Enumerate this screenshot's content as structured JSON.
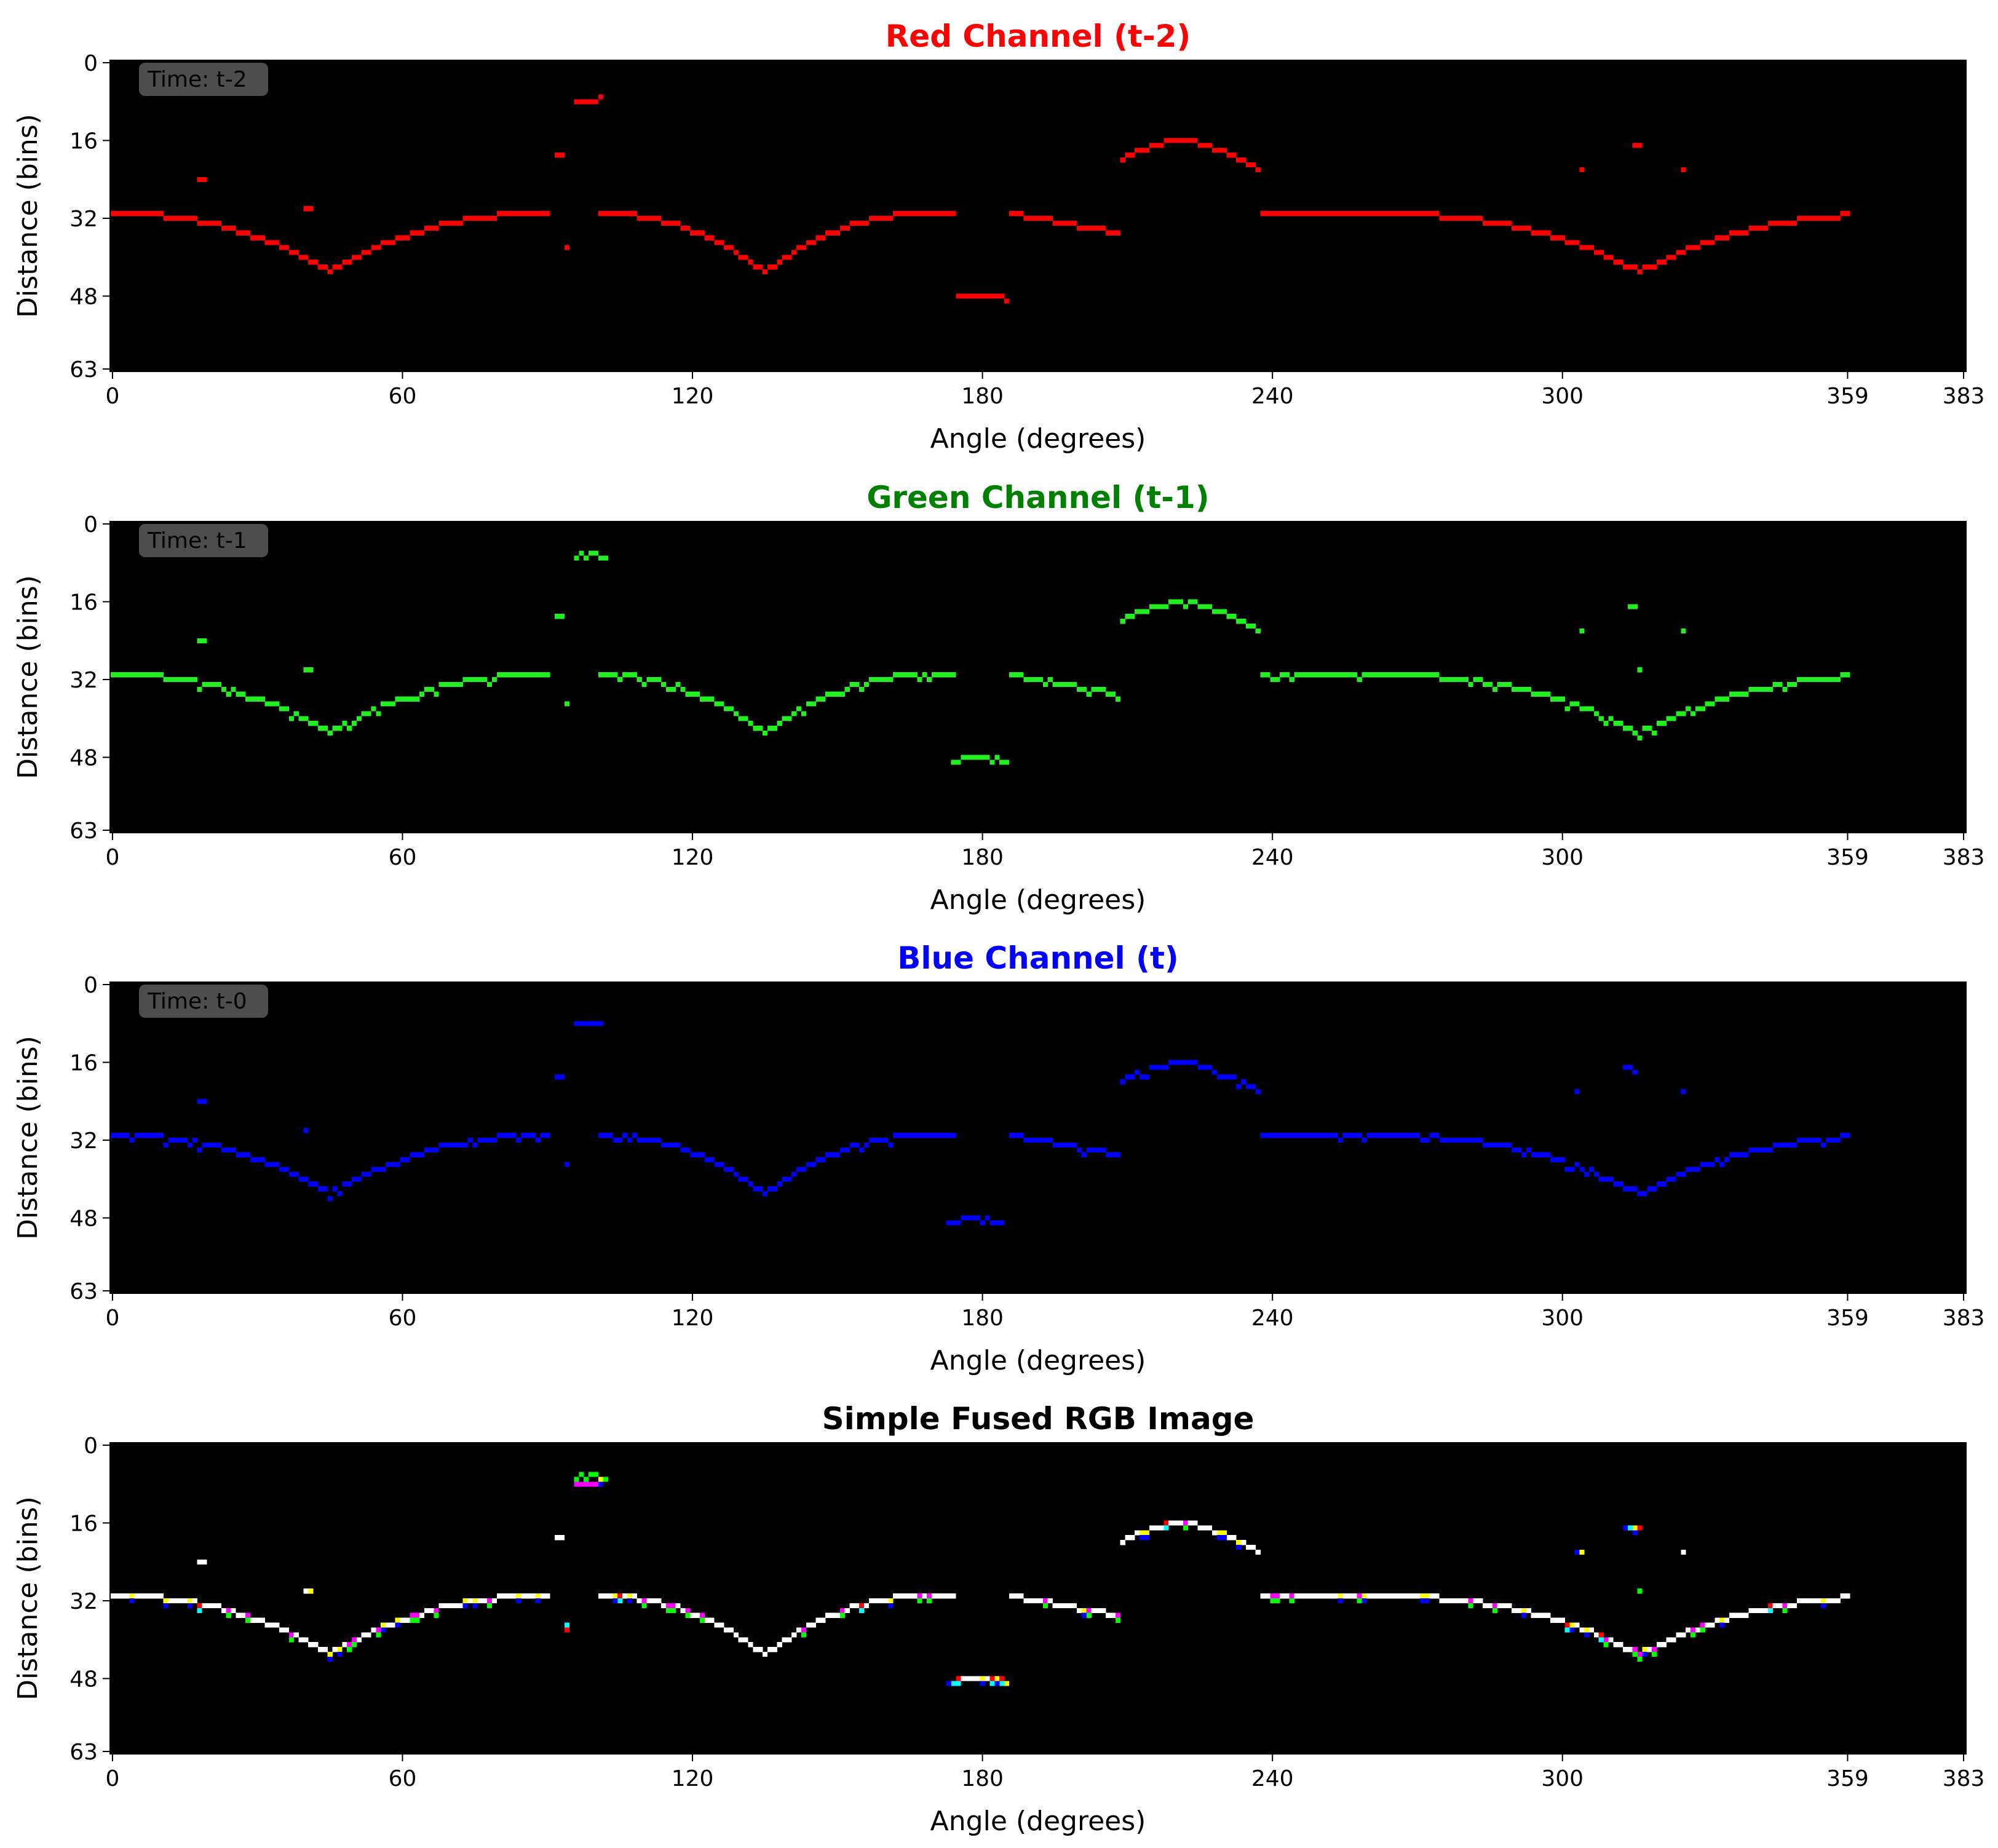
{
  "figure": {
    "background": "#ffffff",
    "plot_background": "#000000"
  },
  "chart_data": [
    {
      "type": "heatmap",
      "title": "Red Channel (t-2)",
      "title_color": "#ff0000",
      "xlabel": "Angle (degrees)",
      "ylabel": "Distance (bins)",
      "annotation": "Time: t-2",
      "xlim": [
        0,
        383
      ],
      "ylim": [
        63,
        0
      ],
      "xticks": [
        0,
        60,
        120,
        180,
        240,
        300,
        359,
        383
      ],
      "yticks": [
        0,
        16,
        32,
        48,
        63
      ],
      "grid": false,
      "channels": [
        "r"
      ],
      "jitter": 0,
      "extras": [
        [
          18,
          24
        ],
        [
          19,
          24
        ],
        [
          40,
          30
        ],
        [
          41,
          30
        ],
        [
          92,
          19
        ],
        [
          93,
          19
        ],
        [
          94,
          38
        ],
        [
          96,
          8
        ],
        [
          97,
          8
        ],
        [
          98,
          8
        ],
        [
          99,
          8
        ],
        [
          100,
          8
        ],
        [
          101,
          7
        ],
        [
          304,
          22
        ],
        [
          315,
          17
        ],
        [
          316,
          17
        ],
        [
          325,
          22
        ],
        [
          175,
          48
        ],
        [
          176,
          48
        ],
        [
          177,
          48
        ],
        [
          178,
          48
        ],
        [
          179,
          48
        ],
        [
          180,
          48
        ],
        [
          181,
          48
        ],
        [
          182,
          48
        ],
        [
          183,
          48
        ],
        [
          184,
          48
        ],
        [
          185,
          49
        ]
      ]
    },
    {
      "type": "heatmap",
      "title": "Green Channel (t-1)",
      "title_color": "#008000",
      "xlabel": "Angle (degrees)",
      "ylabel": "Distance (bins)",
      "annotation": "Time: t-1",
      "xlim": [
        0,
        383
      ],
      "ylim": [
        63,
        0
      ],
      "xticks": [
        0,
        60,
        120,
        180,
        240,
        300,
        359,
        383
      ],
      "yticks": [
        0,
        16,
        32,
        48,
        63
      ],
      "grid": false,
      "channels": [
        "g"
      ],
      "jitter": 1,
      "extras": [
        [
          18,
          24
        ],
        [
          19,
          24
        ],
        [
          40,
          30
        ],
        [
          41,
          30
        ],
        [
          92,
          19
        ],
        [
          93,
          19
        ],
        [
          94,
          37
        ],
        [
          96,
          7
        ],
        [
          97,
          6
        ],
        [
          98,
          7
        ],
        [
          99,
          6
        ],
        [
          100,
          6
        ],
        [
          101,
          7
        ],
        [
          102,
          7
        ],
        [
          304,
          22
        ],
        [
          314,
          17
        ],
        [
          315,
          17
        ],
        [
          316,
          30
        ],
        [
          325,
          22
        ],
        [
          174,
          49
        ],
        [
          175,
          49
        ],
        [
          176,
          48
        ],
        [
          177,
          48
        ],
        [
          178,
          48
        ],
        [
          179,
          48
        ],
        [
          180,
          48
        ],
        [
          181,
          48
        ],
        [
          182,
          49
        ],
        [
          183,
          48
        ],
        [
          184,
          49
        ],
        [
          185,
          49
        ]
      ]
    },
    {
      "type": "heatmap",
      "title": "Blue Channel (t)",
      "title_color": "#0000ff",
      "xlabel": "Angle (degrees)",
      "ylabel": "Distance (bins)",
      "annotation": "Time: t-0",
      "xlim": [
        0,
        383
      ],
      "ylim": [
        63,
        0
      ],
      "xticks": [
        0,
        60,
        120,
        180,
        240,
        300,
        359,
        383
      ],
      "yticks": [
        0,
        16,
        32,
        48,
        63
      ],
      "grid": false,
      "channels": [
        "b"
      ],
      "jitter": 2,
      "extras": [
        [
          18,
          24
        ],
        [
          19,
          24
        ],
        [
          40,
          30
        ],
        [
          92,
          19
        ],
        [
          93,
          19
        ],
        [
          94,
          37
        ],
        [
          96,
          8
        ],
        [
          97,
          8
        ],
        [
          98,
          8
        ],
        [
          99,
          8
        ],
        [
          100,
          8
        ],
        [
          101,
          8
        ],
        [
          303,
          22
        ],
        [
          313,
          17
        ],
        [
          314,
          17
        ],
        [
          315,
          18
        ],
        [
          325,
          22
        ],
        [
          173,
          49
        ],
        [
          174,
          49
        ],
        [
          175,
          49
        ],
        [
          176,
          48
        ],
        [
          177,
          48
        ],
        [
          178,
          48
        ],
        [
          179,
          48
        ],
        [
          180,
          49
        ],
        [
          181,
          48
        ],
        [
          182,
          49
        ],
        [
          183,
          49
        ],
        [
          184,
          49
        ]
      ]
    },
    {
      "type": "heatmap",
      "title": "Simple Fused RGB Image",
      "title_color": "#000000",
      "xlabel": "Angle (degrees)",
      "ylabel": "Distance (bins)",
      "annotation": "",
      "xlim": [
        0,
        383
      ],
      "ylim": [
        63,
        0
      ],
      "xticks": [
        0,
        60,
        120,
        180,
        240,
        300,
        359,
        383
      ],
      "yticks": [
        0,
        16,
        32,
        48,
        63
      ],
      "grid": false,
      "channels": [
        "r",
        "g",
        "b"
      ],
      "jitter": 0,
      "extras": [
        [
          18,
          24
        ],
        [
          19,
          24
        ],
        [
          40,
          30
        ],
        [
          41,
          30
        ],
        [
          92,
          19
        ],
        [
          93,
          19
        ],
        [
          94,
          38
        ],
        [
          96,
          7
        ],
        [
          97,
          7
        ],
        [
          98,
          7
        ],
        [
          99,
          7
        ],
        [
          100,
          7
        ],
        [
          101,
          7
        ],
        [
          303,
          22
        ],
        [
          304,
          22
        ],
        [
          314,
          17
        ],
        [
          315,
          17
        ],
        [
          316,
          30
        ],
        [
          325,
          22
        ],
        [
          173,
          49
        ],
        [
          174,
          49
        ],
        [
          175,
          48
        ],
        [
          176,
          48
        ],
        [
          177,
          48
        ],
        [
          178,
          48
        ],
        [
          179,
          48
        ],
        [
          180,
          48
        ],
        [
          181,
          48
        ],
        [
          182,
          48
        ],
        [
          183,
          48
        ],
        [
          184,
          48
        ],
        [
          185,
          49
        ]
      ]
    }
  ]
}
